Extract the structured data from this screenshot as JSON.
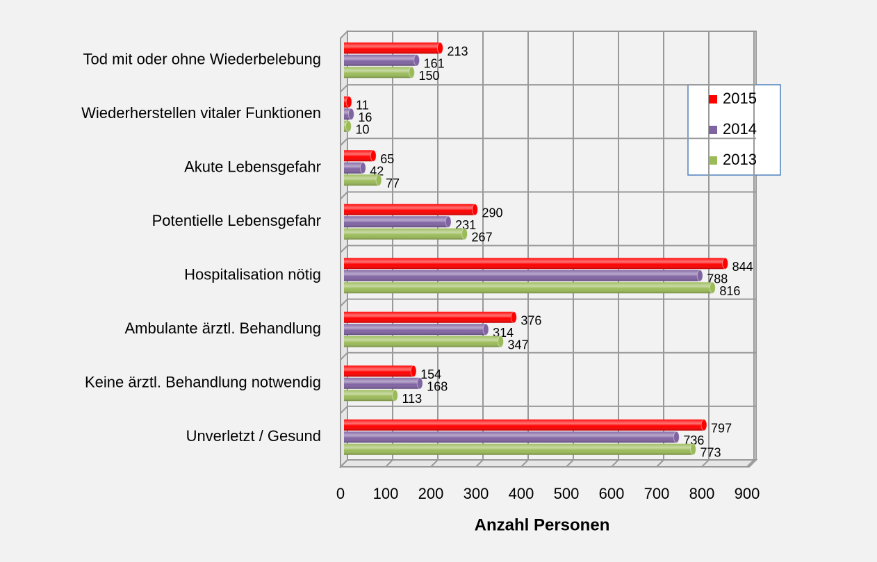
{
  "chart_data": {
    "type": "bar",
    "orientation": "horizontal",
    "x_label": "Anzahl Personen",
    "categories": [
      "Tod mit oder ohne Wiederbelebung",
      "Wiederherstellen vitaler Funktionen",
      "Akute Lebensgefahr",
      "Potentielle Lebensgefahr",
      "Hospitalisation nötig",
      "Ambulante ärztl. Behandlung",
      "Keine ärztl. Behandlung notwendig",
      "Unverletzt / Gesund"
    ],
    "series": [
      {
        "name": "2015",
        "color": "#ff0000",
        "values": [
          213,
          11,
          65,
          290,
          844,
          376,
          154,
          797
        ]
      },
      {
        "name": "2014",
        "color": "#8064a2",
        "values": [
          161,
          16,
          42,
          231,
          788,
          314,
          168,
          736
        ]
      },
      {
        "name": "2013",
        "color": "#9bbb59",
        "values": [
          150,
          10,
          77,
          267,
          816,
          347,
          113,
          773
        ]
      }
    ],
    "xlim": [
      0,
      900
    ],
    "xticks": [
      0,
      100,
      200,
      300,
      400,
      500,
      600,
      700,
      800,
      900
    ],
    "grid": true,
    "legend": "right"
  }
}
